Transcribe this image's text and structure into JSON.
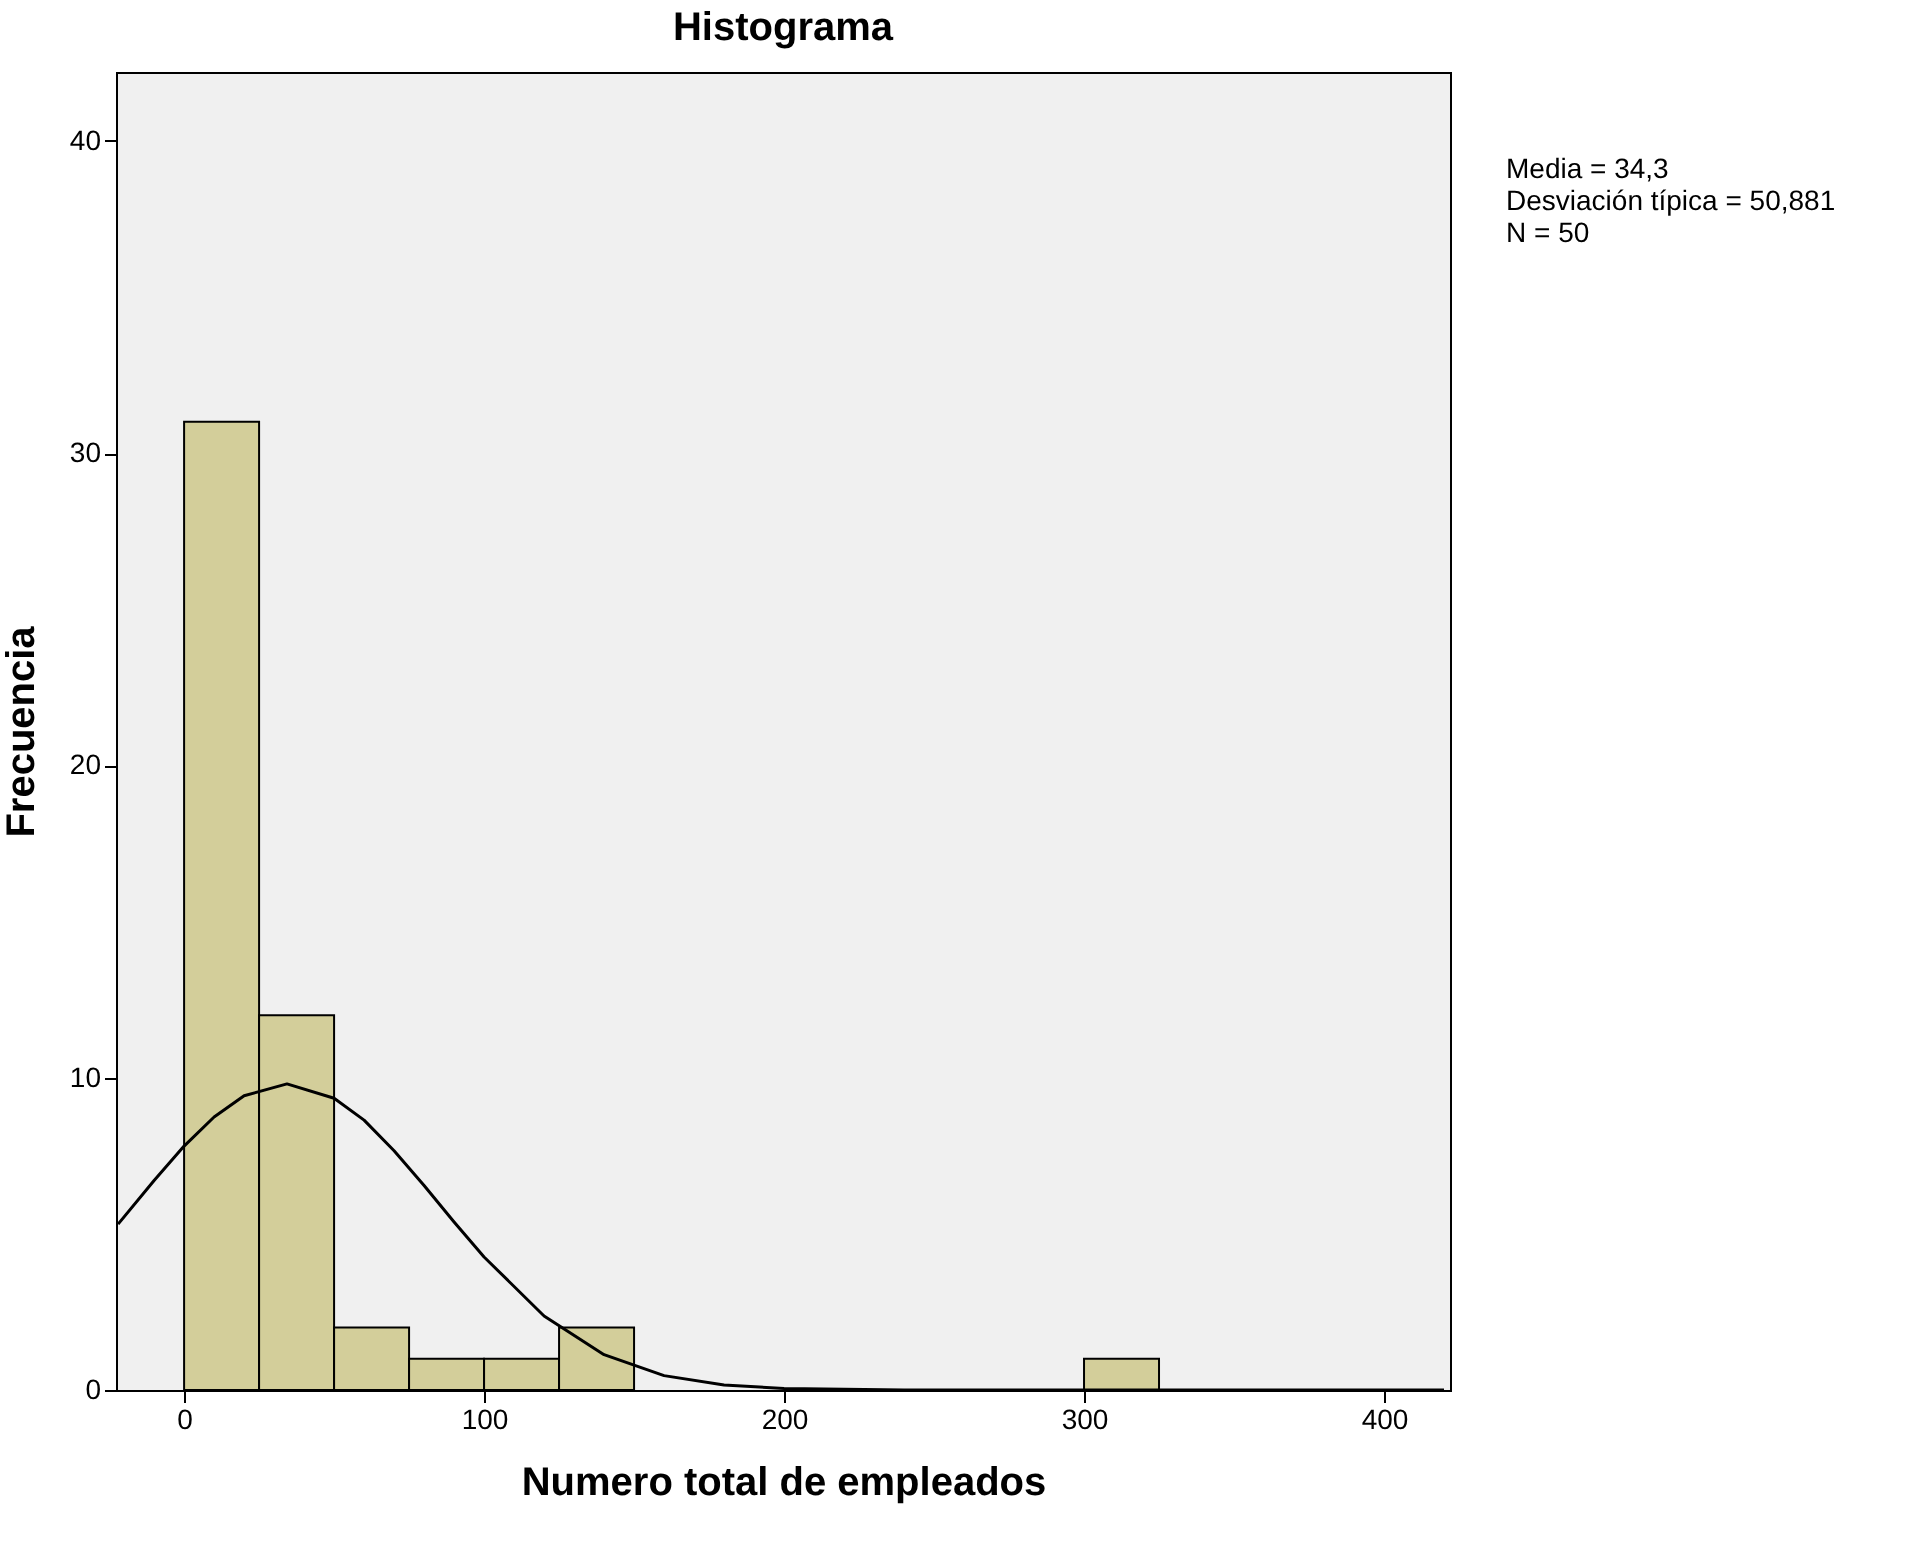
{
  "chart_data": {
    "type": "histogram",
    "title": "Histograma",
    "xlabel": "Numero total de empleados",
    "ylabel": "Frecuencia",
    "bins": [
      0,
      25,
      50,
      75,
      100,
      125,
      150,
      175,
      200,
      225,
      250,
      275,
      300,
      325
    ],
    "values": [
      31,
      12,
      2,
      1,
      1,
      2,
      0,
      0,
      0,
      0,
      0,
      0,
      1
    ],
    "color": "#d3ce9a",
    "series": [
      {
        "type": "line",
        "color": "#000000",
        "x": [
          -22,
          -10,
          0,
          10,
          20,
          34.3,
          50,
          60,
          70,
          80,
          90,
          100,
          120,
          140,
          160,
          180,
          200,
          240,
          300,
          420
        ],
        "values": [
          5.31,
          6.71,
          7.81,
          8.74,
          9.42,
          9.8,
          9.34,
          8.64,
          7.66,
          6.55,
          5.38,
          4.26,
          2.37,
          1.13,
          0.46,
          0.16,
          0.05,
          0,
          0,
          0
        ]
      }
    ],
    "xlim": [
      -22.7,
      422
    ],
    "xticks": [
      0,
      100,
      200,
      300,
      400
    ],
    "ylim": [
      0,
      42.2
    ],
    "yticks": [
      0,
      10,
      20,
      30,
      40
    ],
    "grid": false,
    "annotations": [
      "Media = 34,3\nDesviación típica = 50,881\nN = 50"
    ]
  }
}
